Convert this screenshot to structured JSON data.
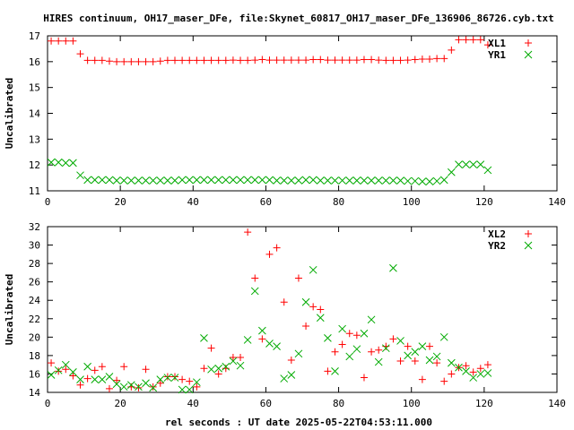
{
  "page_title": "HIRES continuum, OH17_maser_DFe, file:Skynet_60817_OH17_maser_DFe_136906_86726.cyb.txt",
  "xlabel": "rel seconds : UT date 2025-05-22T04:53:11.000",
  "colors": {
    "series1": "#ff0000",
    "series2": "#00aa00",
    "axis": "#000000"
  },
  "chart_data": [
    {
      "type": "scatter",
      "ylabel": "Uncalibrated",
      "xlim": [
        0,
        140
      ],
      "ylim": [
        11,
        17
      ],
      "xticks": [
        0,
        20,
        40,
        60,
        80,
        100,
        120,
        140
      ],
      "yticks": [
        11,
        12,
        13,
        14,
        15,
        16,
        17
      ],
      "legend_position": "top-right",
      "series": [
        {
          "name": "XL1",
          "marker": "plus",
          "x": [
            1,
            3,
            5,
            7,
            9,
            11,
            13,
            15,
            17,
            19,
            21,
            23,
            25,
            27,
            29,
            31,
            33,
            35,
            37,
            39,
            41,
            43,
            45,
            47,
            49,
            51,
            53,
            55,
            57,
            59,
            61,
            63,
            65,
            67,
            69,
            71,
            73,
            75,
            77,
            79,
            81,
            83,
            85,
            87,
            89,
            91,
            93,
            95,
            97,
            99,
            101,
            103,
            105,
            107,
            109,
            111,
            113,
            115,
            117,
            119,
            121
          ],
          "y": [
            16.8,
            16.8,
            16.8,
            16.8,
            16.3,
            16.05,
            16.05,
            16.05,
            16.02,
            16.0,
            16.0,
            16.0,
            16.0,
            16.0,
            16.0,
            16.02,
            16.05,
            16.05,
            16.05,
            16.05,
            16.05,
            16.05,
            16.05,
            16.05,
            16.05,
            16.06,
            16.05,
            16.05,
            16.06,
            16.08,
            16.06,
            16.06,
            16.06,
            16.06,
            16.06,
            16.06,
            16.08,
            16.08,
            16.06,
            16.06,
            16.06,
            16.06,
            16.06,
            16.08,
            16.08,
            16.06,
            16.05,
            16.05,
            16.05,
            16.06,
            16.08,
            16.1,
            16.1,
            16.12,
            16.12,
            16.45,
            16.85,
            16.85,
            16.85,
            16.85,
            16.65
          ]
        },
        {
          "name": "YR1",
          "marker": "cross",
          "x": [
            1,
            3,
            5,
            7,
            9,
            11,
            13,
            15,
            17,
            19,
            21,
            23,
            25,
            27,
            29,
            31,
            33,
            35,
            37,
            39,
            41,
            43,
            45,
            47,
            49,
            51,
            53,
            55,
            57,
            59,
            61,
            63,
            65,
            67,
            69,
            71,
            73,
            75,
            77,
            79,
            81,
            83,
            85,
            87,
            89,
            91,
            93,
            95,
            97,
            99,
            101,
            103,
            105,
            107,
            109,
            111,
            113,
            115,
            117,
            119,
            121
          ],
          "y": [
            12.1,
            12.1,
            12.08,
            12.08,
            11.6,
            11.42,
            11.42,
            11.42,
            11.42,
            11.4,
            11.4,
            11.4,
            11.4,
            11.4,
            11.4,
            11.4,
            11.4,
            11.4,
            11.42,
            11.42,
            11.42,
            11.42,
            11.42,
            11.42,
            11.42,
            11.42,
            11.42,
            11.42,
            11.42,
            11.42,
            11.42,
            11.4,
            11.4,
            11.4,
            11.4,
            11.42,
            11.42,
            11.4,
            11.4,
            11.4,
            11.4,
            11.4,
            11.4,
            11.4,
            11.4,
            11.4,
            11.4,
            11.4,
            11.4,
            11.38,
            11.38,
            11.36,
            11.36,
            11.38,
            11.42,
            11.72,
            12.02,
            12.02,
            12.02,
            12.02,
            11.8
          ]
        }
      ]
    },
    {
      "type": "scatter",
      "ylabel": "Uncalibrated",
      "xlabel": "rel seconds : UT date 2025-05-22T04:53:11.000",
      "xlim": [
        0,
        140
      ],
      "ylim": [
        14,
        32
      ],
      "xticks": [
        0,
        20,
        40,
        60,
        80,
        100,
        120,
        140
      ],
      "yticks": [
        14,
        16,
        18,
        20,
        22,
        24,
        26,
        28,
        30,
        32
      ],
      "legend_position": "top-right",
      "series": [
        {
          "name": "XL2",
          "marker": "plus",
          "x": [
            1,
            3,
            5,
            7,
            9,
            11,
            13,
            15,
            17,
            19,
            21,
            23,
            25,
            27,
            29,
            31,
            33,
            35,
            37,
            39,
            41,
            43,
            45,
            47,
            49,
            51,
            53,
            55,
            57,
            59,
            61,
            63,
            65,
            67,
            69,
            71,
            73,
            75,
            77,
            79,
            81,
            83,
            85,
            87,
            89,
            91,
            93,
            95,
            97,
            99,
            101,
            103,
            105,
            107,
            109,
            111,
            113,
            115,
            117,
            119,
            121
          ],
          "y": [
            17.2,
            16.3,
            16.5,
            15.8,
            14.8,
            15.5,
            16.4,
            16.8,
            14.4,
            15.3,
            16.8,
            14.6,
            14.5,
            16.5,
            14.6,
            15.0,
            15.7,
            15.7,
            15.4,
            15.2,
            14.6,
            16.6,
            18.8,
            16.0,
            16.6,
            17.8,
            17.8,
            31.4,
            26.4,
            19.8,
            29.0,
            29.7,
            23.8,
            17.5,
            26.4,
            21.2,
            23.3,
            23.0,
            16.3,
            18.4,
            19.2,
            20.4,
            20.2,
            15.6,
            18.4,
            18.6,
            19.0,
            19.8,
            17.4,
            19.0,
            17.4,
            15.4,
            19.0,
            17.2,
            15.2,
            16.0,
            16.7,
            16.9,
            16.2,
            16.6,
            17.0
          ]
        },
        {
          "name": "YR2",
          "marker": "cross",
          "x": [
            1,
            3,
            5,
            7,
            9,
            11,
            13,
            15,
            17,
            19,
            21,
            23,
            25,
            27,
            29,
            31,
            33,
            35,
            37,
            39,
            41,
            43,
            45,
            47,
            49,
            51,
            53,
            55,
            57,
            59,
            61,
            63,
            65,
            67,
            69,
            71,
            73,
            75,
            77,
            79,
            81,
            83,
            85,
            87,
            89,
            91,
            93,
            95,
            97,
            99,
            101,
            103,
            105,
            107,
            109,
            111,
            113,
            115,
            117,
            119,
            121
          ],
          "y": [
            15.9,
            16.4,
            17.0,
            16.2,
            15.4,
            16.8,
            15.4,
            15.4,
            15.7,
            14.9,
            14.6,
            14.8,
            14.6,
            15.0,
            14.5,
            15.4,
            15.6,
            15.6,
            14.3,
            14.3,
            15.1,
            19.9,
            16.5,
            16.6,
            16.8,
            17.4,
            16.9,
            19.7,
            25.0,
            20.7,
            19.3,
            19.0,
            15.5,
            15.9,
            18.2,
            23.8,
            27.3,
            22.1,
            19.9,
            16.3,
            20.9,
            17.9,
            18.7,
            20.4,
            21.9,
            17.3,
            18.8,
            27.5,
            19.6,
            18.0,
            18.4,
            19.0,
            17.5,
            17.9,
            20.0,
            17.2,
            16.7,
            16.3,
            15.6,
            16.0,
            16.1
          ]
        }
      ]
    }
  ]
}
